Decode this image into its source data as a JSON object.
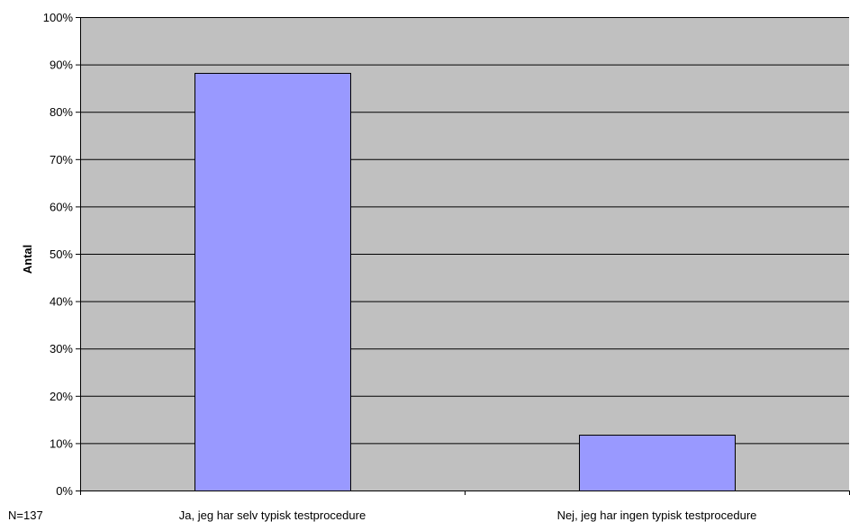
{
  "chart_data": {
    "type": "bar",
    "categories": [
      "Ja, jeg har selv typisk testprocedure",
      "Nej, jeg har ingen typisk testprocedure"
    ],
    "values": [
      88.3,
      11.7
    ],
    "unit": "%",
    "ylabel": "Antal",
    "xlabel": "",
    "ylim": [
      0,
      100
    ],
    "y_ticks": [
      0,
      10,
      20,
      30,
      40,
      50,
      60,
      70,
      80,
      90,
      100
    ],
    "y_tick_labels": [
      "0%",
      "10%",
      "20%",
      "30%",
      "40%",
      "50%",
      "60%",
      "70%",
      "80%",
      "90%",
      "100%"
    ],
    "grid": true,
    "legend": "none",
    "note": "N=137",
    "colors": {
      "plot_background": "#c0c0c0",
      "bar_fill": "#9999ff",
      "bar_stroke": "#000000",
      "gridline": "#000000"
    }
  }
}
